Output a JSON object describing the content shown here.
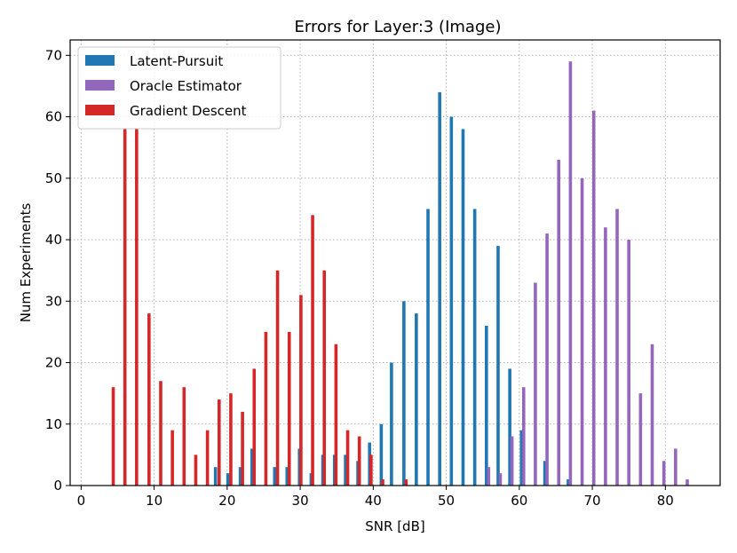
{
  "chart_data": {
    "type": "bar",
    "title": "Errors for Layer:3  (Image)",
    "xlabel": "SNR [dB]",
    "ylabel": "Num Experiments",
    "xlim": [
      -1.5,
      87.5
    ],
    "ylim": [
      0,
      72.5
    ],
    "xticks": [
      0,
      10,
      20,
      30,
      40,
      50,
      60,
      70,
      80
    ],
    "yticks": [
      0,
      10,
      20,
      30,
      40,
      50,
      60,
      70
    ],
    "grid": true,
    "legend_position": "top-left",
    "series": [
      {
        "name": "Latent-Pursuit",
        "color": "#1f77b4",
        "points": [
          {
            "x": 18.4,
            "y": 3
          },
          {
            "x": 20.1,
            "y": 2
          },
          {
            "x": 21.8,
            "y": 3
          },
          {
            "x": 23.4,
            "y": 6
          },
          {
            "x": 26.5,
            "y": 3
          },
          {
            "x": 28.2,
            "y": 3
          },
          {
            "x": 29.9,
            "y": 6
          },
          {
            "x": 31.5,
            "y": 2
          },
          {
            "x": 33.1,
            "y": 5
          },
          {
            "x": 34.7,
            "y": 5
          },
          {
            "x": 36.2,
            "y": 5
          },
          {
            "x": 37.9,
            "y": 4
          },
          {
            "x": 39.5,
            "y": 7
          },
          {
            "x": 41.1,
            "y": 10
          },
          {
            "x": 42.5,
            "y": 20
          },
          {
            "x": 44.2,
            "y": 30
          },
          {
            "x": 45.9,
            "y": 28
          },
          {
            "x": 47.5,
            "y": 45
          },
          {
            "x": 49.1,
            "y": 64
          },
          {
            "x": 50.7,
            "y": 60
          },
          {
            "x": 52.3,
            "y": 58
          },
          {
            "x": 53.9,
            "y": 45
          },
          {
            "x": 55.5,
            "y": 26
          },
          {
            "x": 57.1,
            "y": 39
          },
          {
            "x": 58.7,
            "y": 19
          },
          {
            "x": 60.3,
            "y": 9
          },
          {
            "x": 63.5,
            "y": 4
          },
          {
            "x": 66.7,
            "y": 1
          }
        ]
      },
      {
        "name": "Oracle Estimator",
        "color": "#9467bd",
        "points": [
          {
            "x": 55.8,
            "y": 3
          },
          {
            "x": 57.4,
            "y": 2
          },
          {
            "x": 59.0,
            "y": 8
          },
          {
            "x": 60.6,
            "y": 16
          },
          {
            "x": 62.2,
            "y": 33
          },
          {
            "x": 63.8,
            "y": 41
          },
          {
            "x": 65.4,
            "y": 53
          },
          {
            "x": 67.0,
            "y": 69
          },
          {
            "x": 68.6,
            "y": 50
          },
          {
            "x": 70.2,
            "y": 61
          },
          {
            "x": 71.8,
            "y": 42
          },
          {
            "x": 73.4,
            "y": 45
          },
          {
            "x": 75.0,
            "y": 40
          },
          {
            "x": 76.6,
            "y": 15
          },
          {
            "x": 78.2,
            "y": 23
          },
          {
            "x": 79.8,
            "y": 4
          },
          {
            "x": 81.4,
            "y": 6
          },
          {
            "x": 83.0,
            "y": 1
          }
        ]
      },
      {
        "name": "Gradient Descent",
        "color": "#d62728",
        "points": [
          {
            "x": 4.4,
            "y": 16
          },
          {
            "x": 6.0,
            "y": 58
          },
          {
            "x": 7.6,
            "y": 58
          },
          {
            "x": 9.3,
            "y": 28
          },
          {
            "x": 10.9,
            "y": 17
          },
          {
            "x": 12.5,
            "y": 9
          },
          {
            "x": 14.1,
            "y": 16
          },
          {
            "x": 15.7,
            "y": 5
          },
          {
            "x": 17.3,
            "y": 9
          },
          {
            "x": 18.9,
            "y": 14
          },
          {
            "x": 20.5,
            "y": 15
          },
          {
            "x": 22.1,
            "y": 12
          },
          {
            "x": 23.7,
            "y": 19
          },
          {
            "x": 25.3,
            "y": 25
          },
          {
            "x": 26.9,
            "y": 35
          },
          {
            "x": 28.5,
            "y": 25
          },
          {
            "x": 30.1,
            "y": 31
          },
          {
            "x": 31.7,
            "y": 44
          },
          {
            "x": 33.3,
            "y": 35
          },
          {
            "x": 34.9,
            "y": 23
          },
          {
            "x": 36.5,
            "y": 9
          },
          {
            "x": 38.1,
            "y": 8
          },
          {
            "x": 39.7,
            "y": 5
          },
          {
            "x": 41.3,
            "y": 1
          },
          {
            "x": 44.5,
            "y": 1
          }
        ]
      }
    ]
  }
}
